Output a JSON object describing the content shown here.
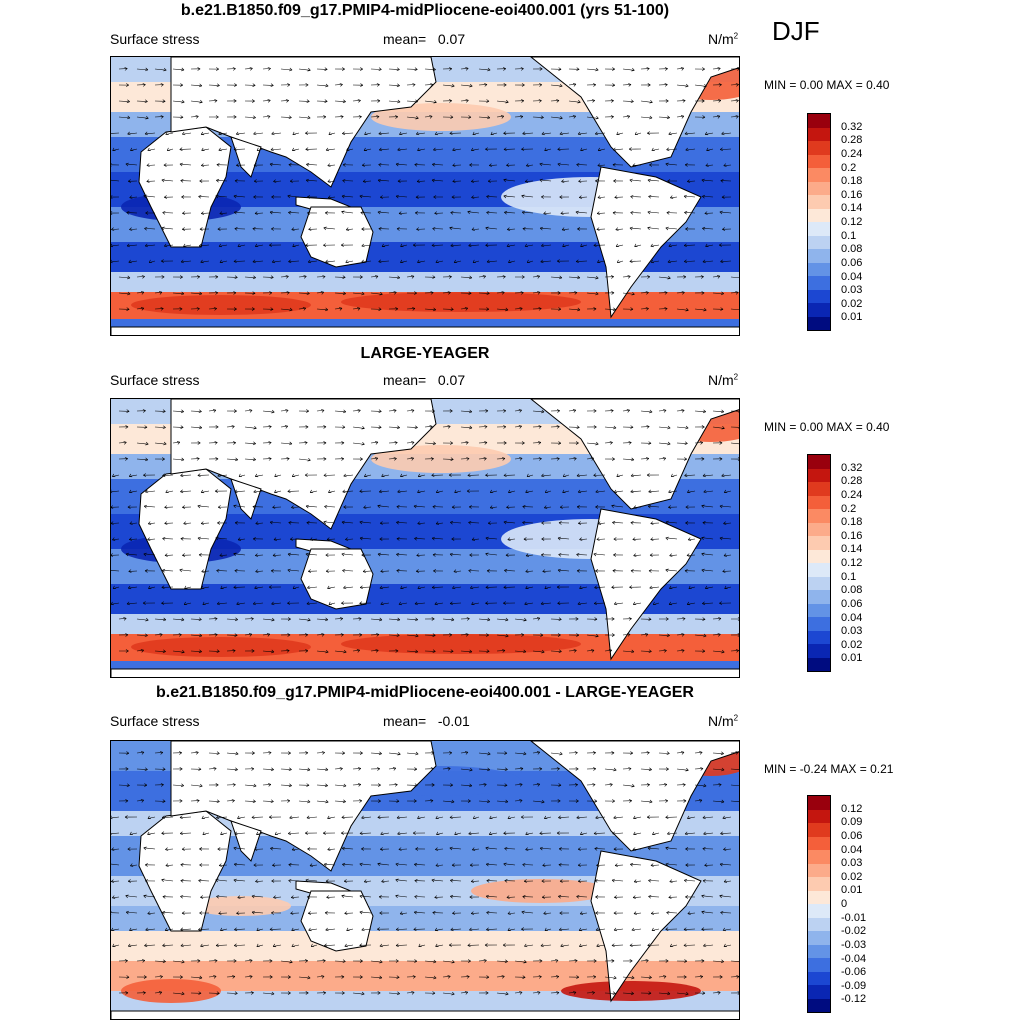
{
  "season": "DJF",
  "panels": [
    {
      "title": "b.e21.B1850.f09_g17.PMIP4-midPliocene-eoi400.001 (yrs 51-100)",
      "variable": "Surface stress",
      "mean_label": "mean=",
      "mean_value": "0.07",
      "units": "N/m",
      "units_exp": "2",
      "min_label": "MIN =",
      "min_value": "0.00",
      "max_label": "MAX =",
      "max_value": "0.40",
      "levels": [
        "0.32",
        "0.28",
        "0.24",
        "0.2",
        "0.18",
        "0.16",
        "0.14",
        "0.12",
        "0.1",
        "0.08",
        "0.06",
        "0.04",
        "0.03",
        "0.02",
        "0.01"
      ],
      "colors": [
        "#99000d",
        "#c4160f",
        "#e03a1e",
        "#f45f3a",
        "#fb8a63",
        "#fcab8a",
        "#fdcbb0",
        "#fde8d8",
        "#dde9f8",
        "#bcd2f2",
        "#8fb4ec",
        "#6393e6",
        "#3d6fe0",
        "#1c47d2",
        "#0a26b3",
        "#000c80"
      ]
    },
    {
      "title": "LARGE-YEAGER",
      "variable": "Surface stress",
      "mean_label": "mean=",
      "mean_value": "0.07",
      "units": "N/m",
      "units_exp": "2",
      "min_label": "MIN =",
      "min_value": "0.00",
      "max_label": "MAX =",
      "max_value": "0.40",
      "levels": [
        "0.32",
        "0.28",
        "0.24",
        "0.2",
        "0.18",
        "0.16",
        "0.14",
        "0.12",
        "0.1",
        "0.08",
        "0.06",
        "0.04",
        "0.03",
        "0.02",
        "0.01"
      ],
      "colors": [
        "#99000d",
        "#c4160f",
        "#e03a1e",
        "#f45f3a",
        "#fb8a63",
        "#fcab8a",
        "#fdcbb0",
        "#fde8d8",
        "#dde9f8",
        "#bcd2f2",
        "#8fb4ec",
        "#6393e6",
        "#3d6fe0",
        "#1c47d2",
        "#0a26b3",
        "#000c80"
      ]
    },
    {
      "title": "b.e21.B1850.f09_g17.PMIP4-midPliocene-eoi400.001 - LARGE-YEAGER",
      "variable": "Surface stress",
      "mean_label": "mean=",
      "mean_value": "-0.01",
      "units": "N/m",
      "units_exp": "2",
      "min_label": "MIN =",
      "min_value": "-0.24",
      "max_label": "MAX =",
      "max_value": "0.21",
      "levels": [
        "0.12",
        "0.09",
        "0.06",
        "0.04",
        "0.03",
        "0.02",
        "0.01",
        "0",
        "-0.01",
        "-0.02",
        "-0.03",
        "-0.04",
        "-0.06",
        "-0.09",
        "-0.12"
      ],
      "colors": [
        "#99000d",
        "#c4160f",
        "#e03a1e",
        "#f45f3a",
        "#fb8a63",
        "#fcab8a",
        "#fdcbb0",
        "#fde8d8",
        "#dde9f8",
        "#bcd2f2",
        "#8fb4ec",
        "#6393e6",
        "#3d6fe0",
        "#1c47d2",
        "#0a26b3",
        "#000c80"
      ]
    }
  ]
}
